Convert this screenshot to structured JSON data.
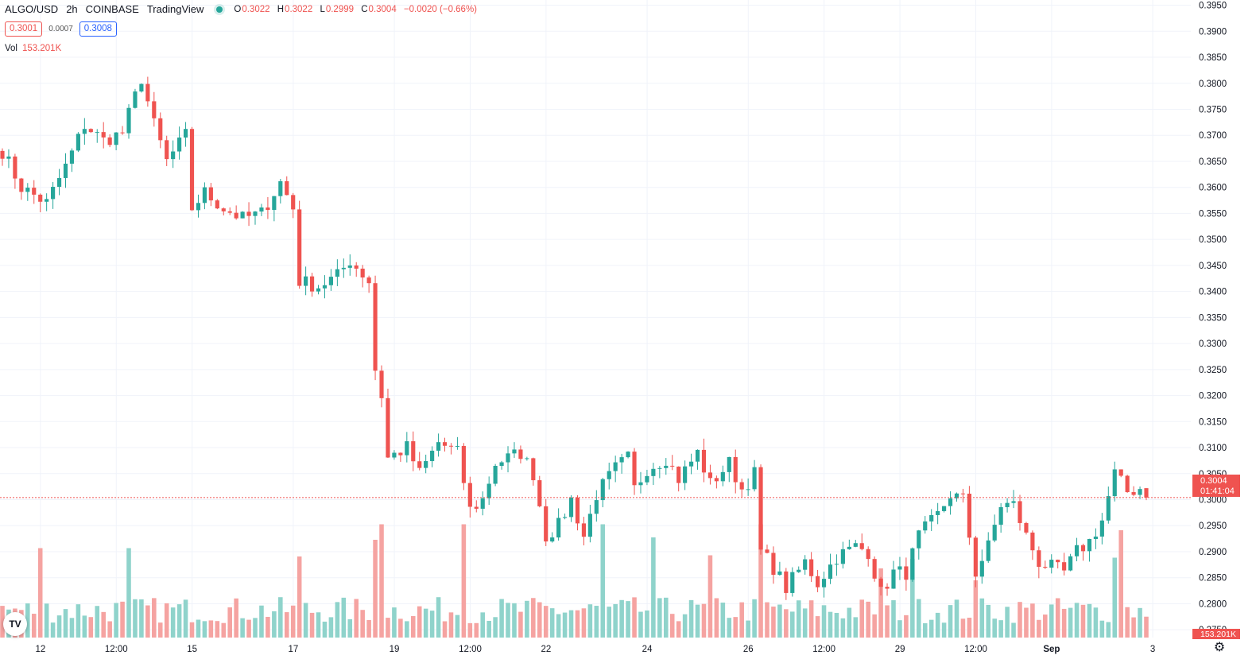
{
  "header": {
    "symbol": "ALGO/USD",
    "interval": "2h",
    "exchange": "COINBASE",
    "source": "TradingView",
    "ohlc": {
      "o_label": "O",
      "o": "0.3022",
      "h_label": "H",
      "h": "0.3022",
      "l_label": "L",
      "l": "0.2999",
      "c_label": "C",
      "c": "0.3004",
      "change": "−0.0020 (−0.66%)"
    },
    "bid": "0.3001",
    "spread": "0.0007",
    "ask": "0.3008",
    "volume_label": "Vol",
    "volume_value": "153.201K"
  },
  "price_tag": {
    "price": "0.3004",
    "countdown": "01:41:04"
  },
  "volume_tag": "153.201K",
  "colors": {
    "up": "#26a69a",
    "down": "#ef5350",
    "up_vol": "#8fd3cb",
    "down_vol": "#f5a3a1",
    "grid": "#f0f3fa"
  },
  "icons": {
    "logo": "tradingview-logo-icon",
    "settings": "gear-icon"
  },
  "chart_data": {
    "type": "candlestick",
    "title": "ALGO/USD 2h COINBASE",
    "y_ticks": [
      "0.3950",
      "0.3900",
      "0.3850",
      "0.3800",
      "0.3750",
      "0.3700",
      "0.3650",
      "0.3600",
      "0.3550",
      "0.3500",
      "0.3450",
      "0.3400",
      "0.3350",
      "0.3300",
      "0.3250",
      "0.3200",
      "0.3150",
      "0.3100",
      "0.3050",
      "0.3000",
      "0.2950",
      "0.2900",
      "0.2850",
      "0.2800",
      "0.2750"
    ],
    "ylim": [
      0.2735,
      0.396
    ],
    "x_ticks": [
      {
        "label": "12",
        "idx": 3
      },
      {
        "label": "12:00",
        "idx": 15
      },
      {
        "label": "15",
        "idx": 27
      },
      {
        "label": "17",
        "idx": 43
      },
      {
        "label": "19",
        "idx": 59
      },
      {
        "label": "12:00",
        "idx": 71
      },
      {
        "label": "22",
        "idx": 83
      },
      {
        "label": "24",
        "idx": 99
      },
      {
        "label": "26",
        "idx": 115
      },
      {
        "label": "12:00",
        "idx": 127
      },
      {
        "label": "29",
        "idx": 139
      },
      {
        "label": "12:00",
        "idx": 151
      },
      {
        "label": "Sep",
        "idx": 163
      },
      {
        "label": "3",
        "idx": 179
      }
    ],
    "anchors": [
      [
        0,
        0.367
      ],
      [
        3,
        0.36
      ],
      [
        7,
        0.357
      ],
      [
        10,
        0.364
      ],
      [
        13,
        0.372
      ],
      [
        16,
        0.369
      ],
      [
        19,
        0.3705
      ],
      [
        22,
        0.381
      ],
      [
        24,
        0.372
      ],
      [
        26,
        0.365
      ],
      [
        29,
        0.37
      ],
      [
        30,
        0.356
      ],
      [
        32,
        0.359
      ],
      [
        35,
        0.356
      ],
      [
        38,
        0.354
      ],
      [
        41,
        0.355
      ],
      [
        44,
        0.361
      ],
      [
        46,
        0.356
      ],
      [
        47,
        0.342
      ],
      [
        50,
        0.341
      ],
      [
        53,
        0.343
      ],
      [
        55,
        0.346
      ],
      [
        58,
        0.342
      ],
      [
        59,
        0.325
      ],
      [
        60,
        0.32
      ],
      [
        61,
        0.308
      ],
      [
        64,
        0.31
      ],
      [
        66,
        0.305
      ],
      [
        69,
        0.311
      ],
      [
        72,
        0.309
      ],
      [
        74,
        0.298
      ],
      [
        76,
        0.3
      ],
      [
        78,
        0.307
      ],
      [
        82,
        0.309
      ],
      [
        84,
        0.305
      ],
      [
        86,
        0.293
      ],
      [
        88,
        0.295
      ],
      [
        90,
        0.3
      ],
      [
        92,
        0.293
      ],
      [
        94,
        0.301
      ],
      [
        97,
        0.306
      ],
      [
        99,
        0.308
      ],
      [
        100,
        0.302
      ],
      [
        102,
        0.306
      ],
      [
        105,
        0.308
      ],
      [
        107,
        0.304
      ],
      [
        110,
        0.309
      ],
      [
        112,
        0.303
      ],
      [
        115,
        0.307
      ],
      [
        117,
        0.302
      ],
      [
        119,
        0.305
      ],
      [
        120,
        0.29
      ],
      [
        122,
        0.287
      ],
      [
        124,
        0.283
      ],
      [
        127,
        0.288
      ],
      [
        129,
        0.284
      ],
      [
        132,
        0.289
      ],
      [
        135,
        0.291
      ],
      [
        137,
        0.29
      ],
      [
        139,
        0.282
      ],
      [
        141,
        0.286
      ],
      [
        143,
        0.286
      ],
      [
        145,
        0.293
      ],
      [
        148,
        0.297
      ],
      [
        150,
        0.301
      ],
      [
        152,
        0.3
      ],
      [
        154,
        0.286
      ],
      [
        156,
        0.291
      ],
      [
        158,
        0.299
      ],
      [
        160,
        0.299
      ],
      [
        162,
        0.293
      ],
      [
        164,
        0.288
      ],
      [
        166,
        0.287
      ],
      [
        168,
        0.286
      ],
      [
        170,
        0.29
      ],
      [
        172,
        0.292
      ],
      [
        174,
        0.296
      ],
      [
        176,
        0.305
      ],
      [
        178,
        0.3015
      ],
      [
        180,
        0.3022
      ],
      [
        181,
        0.3004
      ]
    ],
    "ohlc_last": {
      "open": 0.3022,
      "high": 0.3022,
      "low": 0.2999,
      "close": 0.3004
    },
    "last_price": 0.3004,
    "volume_spikes": [
      {
        "idx": 6,
        "value": 0.75
      },
      {
        "idx": 20,
        "value": 0.75
      },
      {
        "idx": 47,
        "value": 0.68
      },
      {
        "idx": 59,
        "value": 0.82
      },
      {
        "idx": 60,
        "value": 0.95
      },
      {
        "idx": 73,
        "value": 0.95
      },
      {
        "idx": 95,
        "value": 0.95
      },
      {
        "idx": 103,
        "value": 0.84
      },
      {
        "idx": 112,
        "value": 0.69
      },
      {
        "idx": 120,
        "value": 0.95
      },
      {
        "idx": 139,
        "value": 0.58
      },
      {
        "idx": 144,
        "value": 0.66
      },
      {
        "idx": 154,
        "value": 0.48
      },
      {
        "idx": 176,
        "value": 0.67
      },
      {
        "idx": 177,
        "value": 0.9
      }
    ],
    "volume_max_label": "153.201K"
  }
}
